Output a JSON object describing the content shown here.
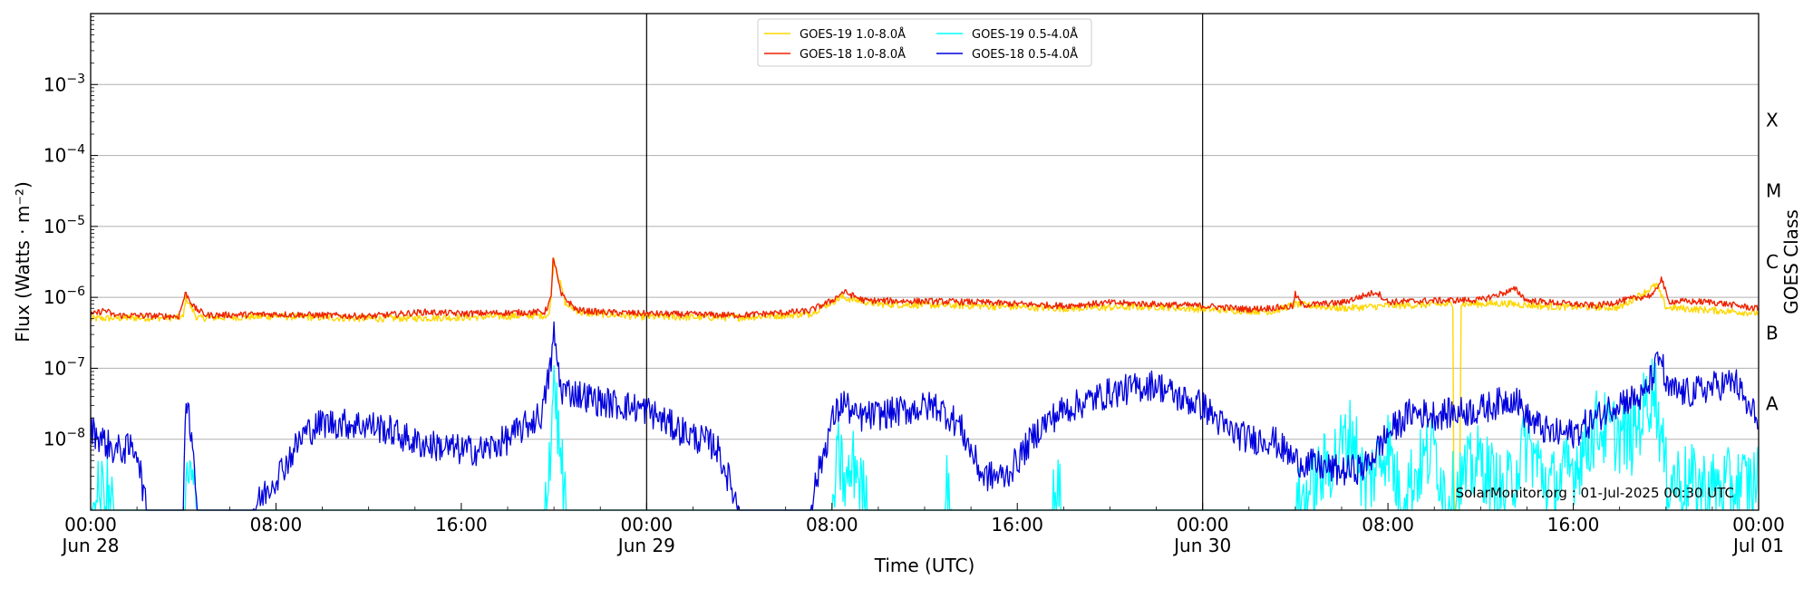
{
  "chart_data": {
    "type": "line",
    "title": "",
    "xlabel": "Time (UTC)",
    "ylabel": "Flux (Watts · m⁻²)",
    "ylabel_right": "GOES Class",
    "y_scale": "log",
    "ylim": [
      1e-09,
      0.01
    ],
    "xlim": [
      "2025-06-28 00:00",
      "2025-07-01 00:00"
    ],
    "grid": "horizontal",
    "legend_position": "top-center",
    "credit": "SolarMonitor.org : 01-Jul-2025 00:30 UTC",
    "y_ticks": [
      {
        "value": 1e-08,
        "base": "10",
        "exp": "−8"
      },
      {
        "value": 1e-07,
        "base": "10",
        "exp": "−7"
      },
      {
        "value": 1e-06,
        "base": "10",
        "exp": "−6"
      },
      {
        "value": 1e-05,
        "base": "10",
        "exp": "−5"
      },
      {
        "value": 0.0001,
        "base": "10",
        "exp": "−4"
      },
      {
        "value": 0.001,
        "base": "10",
        "exp": "−3"
      }
    ],
    "x_ticks": [
      {
        "hour": 0,
        "line1": "00:00",
        "line2": "Jun 28"
      },
      {
        "hour": 8,
        "line1": "08:00",
        "line2": ""
      },
      {
        "hour": 16,
        "line1": "16:00",
        "line2": ""
      },
      {
        "hour": 24,
        "line1": "00:00",
        "line2": "Jun 29"
      },
      {
        "hour": 32,
        "line1": "08:00",
        "line2": ""
      },
      {
        "hour": 40,
        "line1": "16:00",
        "line2": ""
      },
      {
        "hour": 48,
        "line1": "00:00",
        "line2": "Jun 30"
      },
      {
        "hour": 56,
        "line1": "08:00",
        "line2": ""
      },
      {
        "hour": 64,
        "line1": "16:00",
        "line2": ""
      },
      {
        "hour": 72,
        "line1": "00:00",
        "line2": "Jul 01"
      }
    ],
    "day_boundaries": [
      24,
      48
    ],
    "goes_classes": [
      {
        "label": "A",
        "center": 3.16e-08
      },
      {
        "label": "B",
        "center": 3.16e-07
      },
      {
        "label": "C",
        "center": 3.16e-06
      },
      {
        "label": "M",
        "center": 3.16e-05
      },
      {
        "label": "X",
        "center": 0.000316
      }
    ],
    "series": [
      {
        "name": "GOES-19 1.0-8.0Å",
        "color": "#ffd700",
        "points": [
          [
            0,
            5e-07
          ],
          [
            1,
            5.1e-07
          ],
          [
            4,
            5.2e-07
          ],
          [
            4.1,
            1e-06
          ],
          [
            4.6,
            5.1e-07
          ],
          [
            8,
            5.4e-07
          ],
          [
            12,
            5e-07
          ],
          [
            16,
            5.2e-07
          ],
          [
            19.8,
            5.6e-07
          ],
          [
            20,
            3.5e-06
          ],
          [
            20.5,
            8e-07
          ],
          [
            21.2,
            6e-07
          ],
          [
            24,
            5.3e-07
          ],
          [
            28,
            5.2e-07
          ],
          [
            31,
            5.8e-07
          ],
          [
            32.4,
            1e-06
          ],
          [
            34,
            8e-07
          ],
          [
            38,
            7.6e-07
          ],
          [
            42,
            7e-07
          ],
          [
            46,
            7.4e-07
          ],
          [
            48,
            6.8e-07
          ],
          [
            51,
            6.3e-07
          ],
          [
            52,
            8e-07
          ],
          [
            54,
            7e-07
          ],
          [
            56,
            7.6e-07
          ],
          [
            58.8,
            8e-07
          ],
          [
            58.85,
            1e-09
          ],
          [
            59.1,
            1e-09
          ],
          [
            59.15,
            8e-07
          ],
          [
            61,
            8.2e-07
          ],
          [
            63,
            7.4e-07
          ],
          [
            66,
            7.2e-07
          ],
          [
            67.6,
            1.5e-06
          ],
          [
            68,
            7.2e-07
          ],
          [
            72,
            6e-07
          ]
        ]
      },
      {
        "name": "GOES-18 1.0-8.0Å",
        "color": "#ee2200",
        "points": [
          [
            0,
            5.6e-07
          ],
          [
            0.6,
            6.6e-07
          ],
          [
            1,
            5.6e-07
          ],
          [
            3.8,
            5.4e-07
          ],
          [
            4.1,
            1.15e-06
          ],
          [
            4.5,
            7e-07
          ],
          [
            5,
            5.6e-07
          ],
          [
            8,
            5.8e-07
          ],
          [
            12,
            5.4e-07
          ],
          [
            14.4,
            6.2e-07
          ],
          [
            16,
            5.9e-07
          ],
          [
            19.6,
            6.2e-07
          ],
          [
            19.9,
            1e-06
          ],
          [
            19.95,
            4e-06
          ],
          [
            20.3,
            1.1e-06
          ],
          [
            21,
            6.6e-07
          ],
          [
            22,
            6.2e-07
          ],
          [
            24,
            5.9e-07
          ],
          [
            28,
            5.6e-07
          ],
          [
            31,
            6.4e-07
          ],
          [
            32,
            9e-07
          ],
          [
            32.5,
            1.2e-06
          ],
          [
            33.4,
            9e-07
          ],
          [
            36,
            8.8e-07
          ],
          [
            38,
            8.6e-07
          ],
          [
            42,
            7.6e-07
          ],
          [
            44,
            8.4e-07
          ],
          [
            48,
            7.6e-07
          ],
          [
            50,
            6.8e-07
          ],
          [
            51.9,
            7.4e-07
          ],
          [
            52,
            1.1e-06
          ],
          [
            52.3,
            7.8e-07
          ],
          [
            54,
            8.4e-07
          ],
          [
            55.5,
            1.2e-06
          ],
          [
            56,
            8.6e-07
          ],
          [
            57,
            8.8e-07
          ],
          [
            58,
            9e-07
          ],
          [
            60,
            9.2e-07
          ],
          [
            61.5,
            1.3e-06
          ],
          [
            62,
            9e-07
          ],
          [
            65,
            7.6e-07
          ],
          [
            67.5,
            1.1e-06
          ],
          [
            67.8,
            1.9e-06
          ],
          [
            68.1,
            8.8e-07
          ],
          [
            70,
            8.6e-07
          ],
          [
            72,
            6.9e-07
          ]
        ]
      },
      {
        "name": "GOES-19 0.5-4.0Å",
        "color": "#00ffff",
        "points": [
          [
            0,
            1e-09
          ],
          [
            0.6,
            2e-09
          ],
          [
            1.0,
            1e-09
          ],
          [
            4,
            1e-09
          ],
          [
            4.3,
            3e-09
          ],
          [
            4.6,
            1e-09
          ],
          [
            19.6,
            1e-09
          ],
          [
            19.9,
            1.5e-08
          ],
          [
            20.0,
            1e-07
          ],
          [
            20.2,
            1e-08
          ],
          [
            20.5,
            1e-09
          ],
          [
            32,
            1e-09
          ],
          [
            32.3,
            6e-09
          ],
          [
            32.6,
            2e-09
          ],
          [
            33,
            5e-09
          ],
          [
            33.5,
            1e-09
          ],
          [
            36.8,
            1e-09
          ],
          [
            37,
            3.5e-09
          ],
          [
            37.2,
            1e-09
          ],
          [
            41.5,
            1e-09
          ],
          [
            41.7,
            2e-09
          ],
          [
            42,
            1e-09
          ],
          [
            52,
            1e-09
          ],
          [
            54.5,
            1.3e-08
          ],
          [
            55,
            2e-09
          ],
          [
            56,
            9e-09
          ],
          [
            56.5,
            1.5e-09
          ],
          [
            58,
            8e-09
          ],
          [
            58.5,
            1.5e-09
          ],
          [
            60,
            5e-09
          ],
          [
            61,
            1.5e-09
          ],
          [
            62,
            9e-09
          ],
          [
            63,
            2e-09
          ],
          [
            64,
            4e-09
          ],
          [
            65,
            1.5e-08
          ],
          [
            66.5,
            1e-08
          ],
          [
            67.5,
            6e-08
          ],
          [
            68,
            3e-09
          ],
          [
            70,
            2e-09
          ],
          [
            72,
            2.5e-09
          ]
        ]
      },
      {
        "name": "GOES-18 0.5-4.0Å",
        "color": "#0000dd",
        "points": [
          [
            0,
            1.4e-08
          ],
          [
            1,
            7e-09
          ],
          [
            2,
            7.5e-09
          ],
          [
            2.4,
            1e-09
          ],
          [
            3,
            1e-09
          ],
          [
            4,
            1e-09
          ],
          [
            4.1,
            4.8e-08
          ],
          [
            4.4,
            1e-08
          ],
          [
            4.6,
            1e-09
          ],
          [
            7,
            1e-09
          ],
          [
            8.5,
            5e-09
          ],
          [
            9.2,
            1.2e-08
          ],
          [
            10,
            1.7e-08
          ],
          [
            12,
            1.6e-08
          ],
          [
            13,
            1.3e-08
          ],
          [
            14,
            9e-09
          ],
          [
            16,
            7e-09
          ],
          [
            17,
            7e-09
          ],
          [
            18,
            1e-08
          ],
          [
            19.5,
            2.3e-08
          ],
          [
            19.9,
            1.4e-07
          ],
          [
            20,
            3e-07
          ],
          [
            20.3,
            5e-08
          ],
          [
            21,
            4.4e-08
          ],
          [
            22,
            3.4e-08
          ],
          [
            24,
            2.6e-08
          ],
          [
            25,
            1.6e-08
          ],
          [
            26,
            1.1e-08
          ],
          [
            27,
            8e-09
          ],
          [
            27.5,
            3e-09
          ],
          [
            28,
            1e-09
          ],
          [
            31,
            1e-09
          ],
          [
            32,
            1.8e-08
          ],
          [
            32.5,
            3.5e-08
          ],
          [
            33,
            2e-08
          ],
          [
            34,
            2.2e-08
          ],
          [
            35,
            2.5e-08
          ],
          [
            36.5,
            3e-08
          ],
          [
            37.5,
            1.6e-08
          ],
          [
            38.5,
            3e-09
          ],
          [
            39.5,
            3e-09
          ],
          [
            40,
            5e-09
          ],
          [
            41,
            1.5e-08
          ],
          [
            42,
            2.6e-08
          ],
          [
            44,
            4.5e-08
          ],
          [
            46,
            6e-08
          ],
          [
            47,
            3.8e-08
          ],
          [
            48,
            3e-08
          ],
          [
            49,
            1.4e-08
          ],
          [
            50,
            1e-08
          ],
          [
            51,
            1e-08
          ],
          [
            52,
            5e-09
          ],
          [
            54,
            3.5e-09
          ],
          [
            55,
            4e-09
          ],
          [
            56,
            1.2e-08
          ],
          [
            57,
            2.4e-08
          ],
          [
            58,
            2.2e-08
          ],
          [
            60,
            2.6e-08
          ],
          [
            61.5,
            4e-08
          ],
          [
            62,
            2e-08
          ],
          [
            63,
            1.2e-08
          ],
          [
            64,
            1.2e-08
          ],
          [
            65,
            2e-08
          ],
          [
            66,
            3.5e-08
          ],
          [
            67,
            3.8e-08
          ],
          [
            67.8,
            1.55e-07
          ],
          [
            68,
            5e-08
          ],
          [
            69,
            4.4e-08
          ],
          [
            70,
            5.5e-08
          ],
          [
            71,
            6.5e-08
          ],
          [
            71.6,
            2.5e-08
          ],
          [
            72,
            2.2e-08
          ]
        ]
      }
    ]
  }
}
